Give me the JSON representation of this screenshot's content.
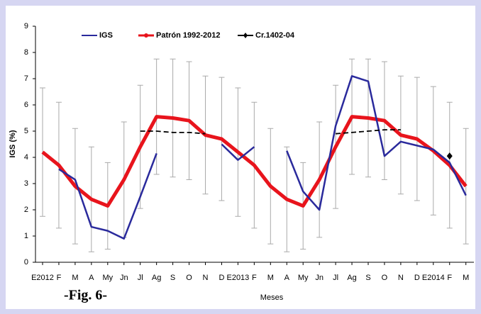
{
  "chart_data": {
    "type": "line",
    "y_label": "IGS (%)",
    "x_label": "Meses",
    "annotation": "-Fig. 6-",
    "categories": [
      "E2012",
      "F",
      "M",
      "A",
      "My",
      "Jn",
      "Jl",
      "Ag",
      "S",
      "O",
      "N",
      "D",
      "E2013",
      "F",
      "M",
      "A",
      "My",
      "Jn",
      "Jl",
      "Ag",
      "S",
      "O",
      "N",
      "D",
      "E2014",
      "F",
      "M"
    ],
    "ylim": [
      0,
      9
    ],
    "yticks": [
      0,
      1,
      2,
      3,
      4,
      5,
      6,
      7,
      8,
      9
    ],
    "grid": false,
    "series": [
      {
        "name": "IGS",
        "color": "#2a2a9c",
        "values": [
          null,
          3.55,
          3.15,
          1.35,
          1.2,
          0.9,
          2.5,
          4.15,
          null,
          null,
          null,
          4.5,
          3.9,
          4.4,
          null,
          4.25,
          2.7,
          2.0,
          5.2,
          7.1,
          6.9,
          4.05,
          4.6,
          4.45,
          4.3,
          3.8,
          2.55
        ]
      },
      {
        "name": "Patrón 1992-2012",
        "color": "#e8141c",
        "values": [
          4.2,
          3.7,
          2.9,
          2.4,
          2.15,
          3.15,
          4.4,
          5.55,
          5.5,
          5.4,
          4.85,
          4.7,
          4.2,
          3.7,
          2.9,
          2.4,
          2.15,
          3.15,
          4.4,
          5.55,
          5.5,
          5.4,
          4.85,
          4.7,
          4.25,
          3.7,
          2.9
        ],
        "errors": [
          2.45,
          2.4,
          2.2,
          2.0,
          1.65,
          2.2,
          2.35,
          2.2,
          2.25,
          2.25,
          2.25,
          2.35,
          2.45,
          2.4,
          2.2,
          2.0,
          1.65,
          2.2,
          2.35,
          2.2,
          2.25,
          2.25,
          2.25,
          2.35,
          2.45,
          2.4,
          2.2
        ]
      },
      {
        "name": "Cr.1402-04",
        "color": "#000000",
        "values": [
          null,
          null,
          null,
          null,
          null,
          null,
          5.0,
          5.0,
          4.95,
          4.95,
          4.9,
          null,
          null,
          null,
          null,
          null,
          null,
          null,
          4.9,
          4.95,
          5.0,
          5.05,
          5.05,
          null,
          null,
          4.05,
          null
        ]
      }
    ]
  }
}
